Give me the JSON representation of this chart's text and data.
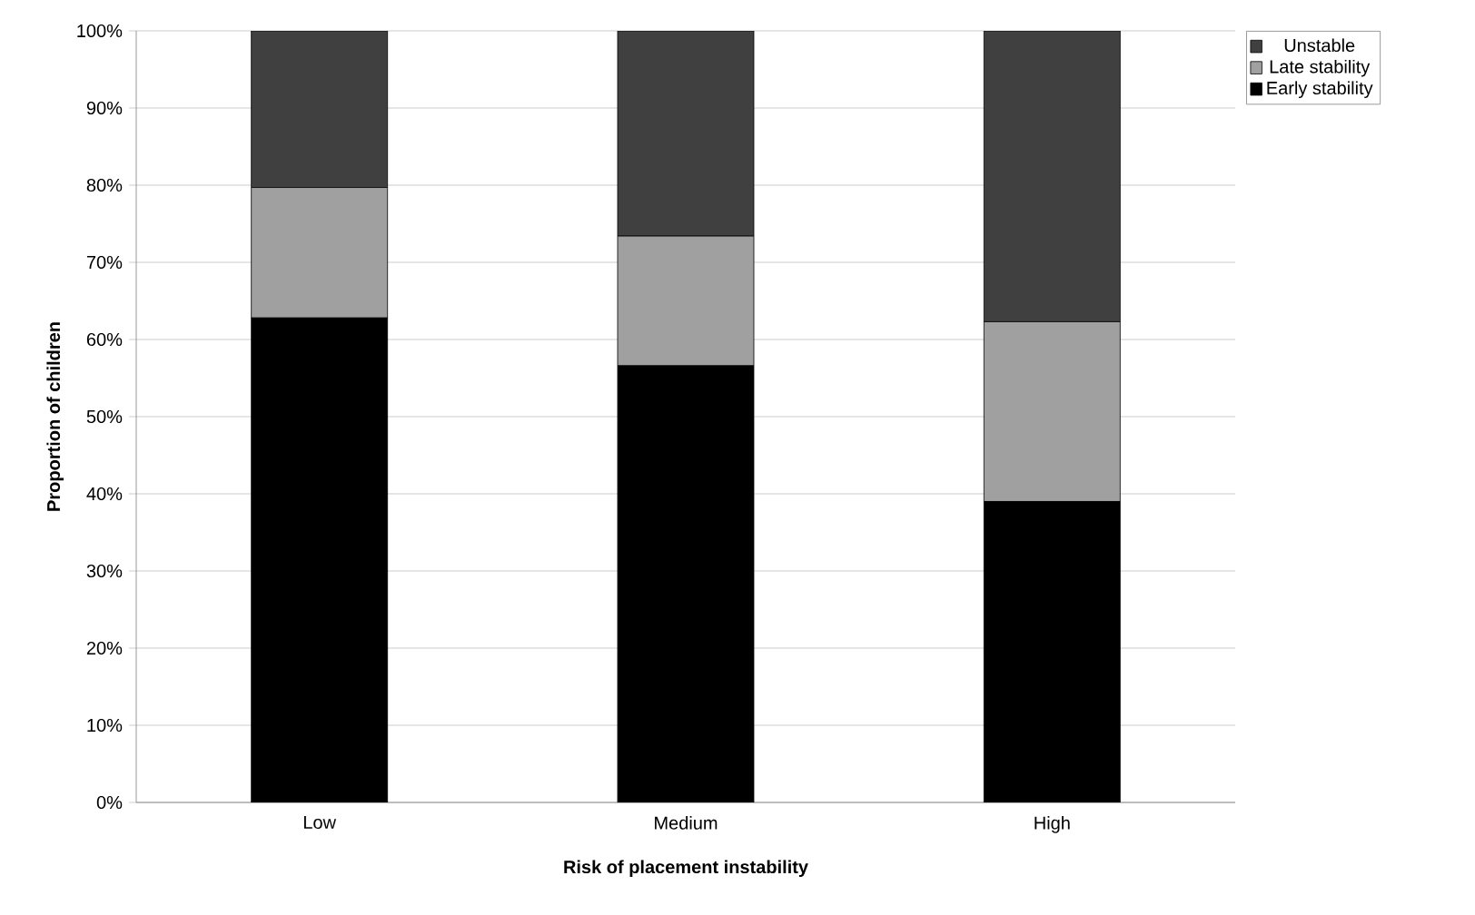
{
  "chart_data": {
    "type": "bar",
    "stacked": true,
    "xlabel": "Risk of placement instability",
    "ylabel": "Proportion of children",
    "categories": [
      "Low",
      "Medium",
      "High"
    ],
    "series": [
      {
        "name": "Early stability",
        "color": "#000000",
        "values": [
          62.8,
          56.6,
          39.0
        ]
      },
      {
        "name": "Late stability",
        "color": "#a0a0a0",
        "values": [
          16.9,
          16.8,
          23.3
        ]
      },
      {
        "name": "Unstable",
        "color": "#404040",
        "values": [
          20.3,
          26.6,
          37.7
        ]
      }
    ],
    "ylim": [
      0,
      100
    ],
    "yticks": [
      {
        "value": 0,
        "label": "0%"
      },
      {
        "value": 10,
        "label": "10%"
      },
      {
        "value": 20,
        "label": "20%"
      },
      {
        "value": 30,
        "label": "30%"
      },
      {
        "value": 40,
        "label": "40%"
      },
      {
        "value": 50,
        "label": "50%"
      },
      {
        "value": 60,
        "label": "60%"
      },
      {
        "value": 70,
        "label": "70%"
      },
      {
        "value": 80,
        "label": "80%"
      },
      {
        "value": 90,
        "label": "90%"
      },
      {
        "value": 100,
        "label": "100%"
      }
    ],
    "grid": "y",
    "legend": "top right"
  }
}
